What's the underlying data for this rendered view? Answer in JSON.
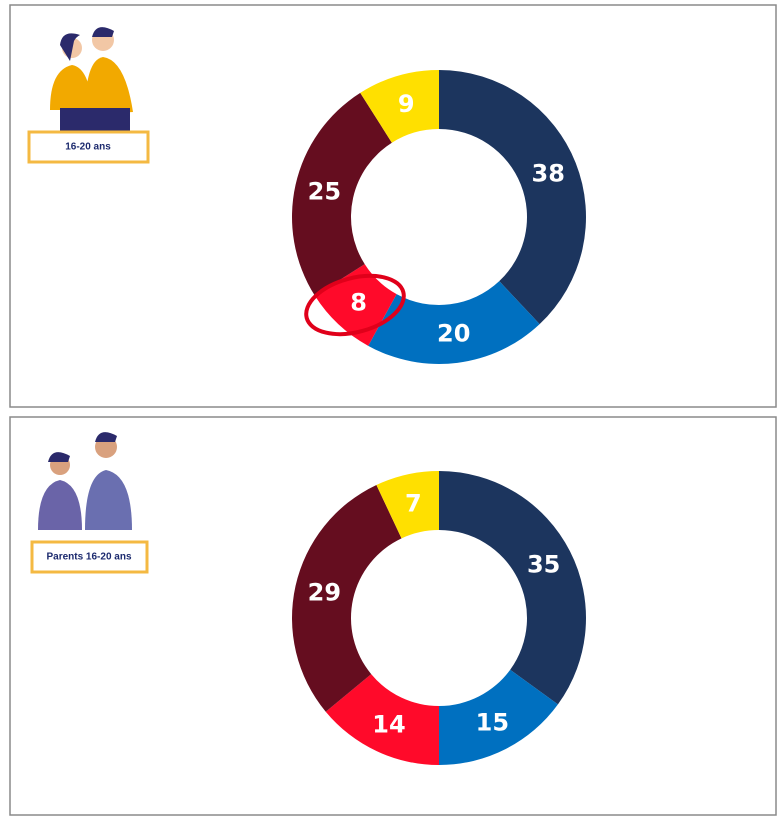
{
  "chart_data": [
    {
      "type": "donut",
      "title": "16-20 ans",
      "values": [
        38,
        20,
        8,
        25,
        9
      ],
      "colors": [
        "#1c355e",
        "#0070c0",
        "#ff0a2a",
        "#650d1f",
        "#ffe000"
      ]
    },
    {
      "type": "donut",
      "title": "Parents 16-20 ans",
      "values": [
        35,
        15,
        14,
        29,
        7
      ],
      "colors": [
        "#1c355e",
        "#0070c0",
        "#ff0a2a",
        "#650d1f",
        "#ffe000"
      ]
    }
  ]
}
